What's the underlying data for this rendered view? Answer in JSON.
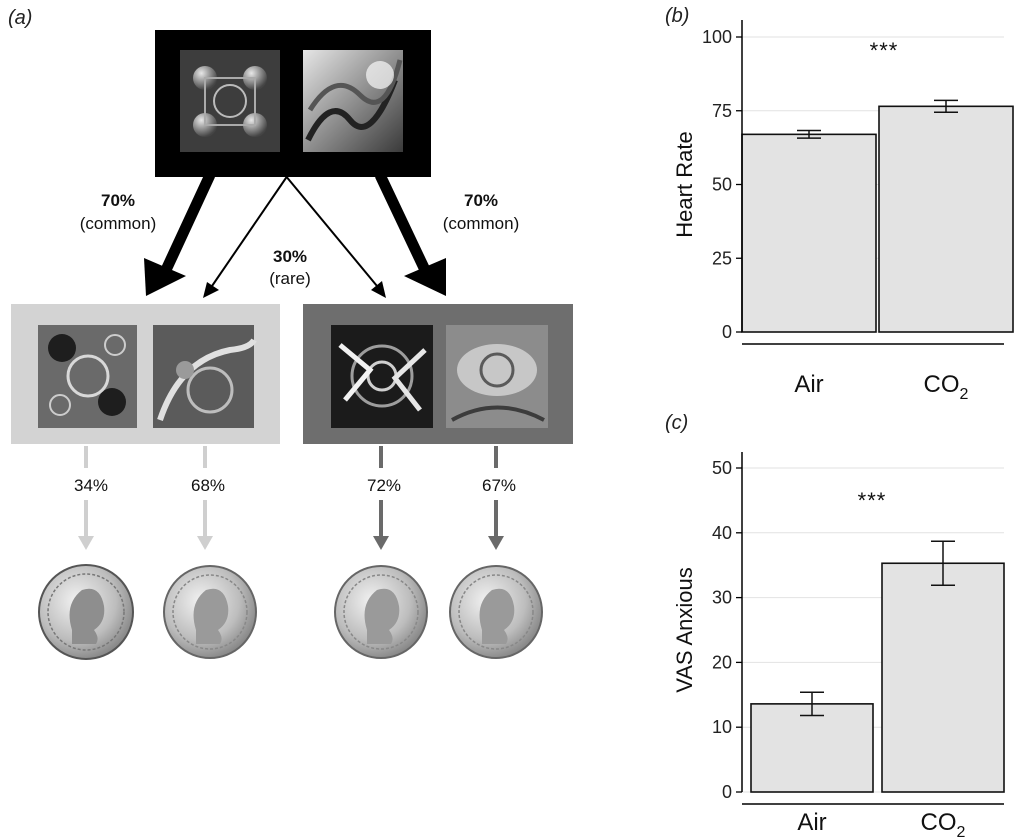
{
  "diagram": {
    "panel_label": "(a)",
    "first_stage": {
      "stimuli": [
        "fractal-spheres",
        "fractal-swirl"
      ]
    },
    "transitions": {
      "common_left": {
        "percent": "70%",
        "label": "(common)"
      },
      "rare": {
        "percent": "30%",
        "label": "(rare)"
      },
      "common_right": {
        "percent": "70%",
        "label": "(common)"
      }
    },
    "second_stage_left": {
      "color": "#d3d3d3",
      "outcomes": [
        "34%",
        "68%"
      ]
    },
    "second_stage_right": {
      "color": "#6e6e6e",
      "outcomes": [
        "72%",
        "67%"
      ]
    },
    "rewards": [
      "coin-icon",
      "coin-icon",
      "coin-icon",
      "coin-icon"
    ]
  },
  "chart_data": [
    {
      "panel_label": "(b)",
      "type": "bar",
      "categories": [
        "Air",
        "CO"
      ],
      "category_subscripts": [
        "",
        "2"
      ],
      "values": [
        67,
        76.5
      ],
      "error": [
        1.3,
        2.0
      ],
      "ylabel": "Heart Rate",
      "ylim": [
        0,
        100
      ],
      "yticks": [
        0,
        25,
        50,
        75,
        100
      ],
      "significance": "***",
      "bar_color": "#e3e3e3",
      "grid": true
    },
    {
      "panel_label": "(c)",
      "type": "bar",
      "categories": [
        "Air",
        "CO"
      ],
      "category_subscripts": [
        "",
        "2"
      ],
      "values": [
        13.6,
        35.3
      ],
      "error": [
        1.8,
        3.4
      ],
      "ylabel": "VAS Anxious",
      "ylim": [
        0,
        50
      ],
      "yticks": [
        0,
        10,
        20,
        30,
        40,
        50
      ],
      "significance": "***",
      "bar_color": "#e3e3e3",
      "grid": true
    }
  ]
}
